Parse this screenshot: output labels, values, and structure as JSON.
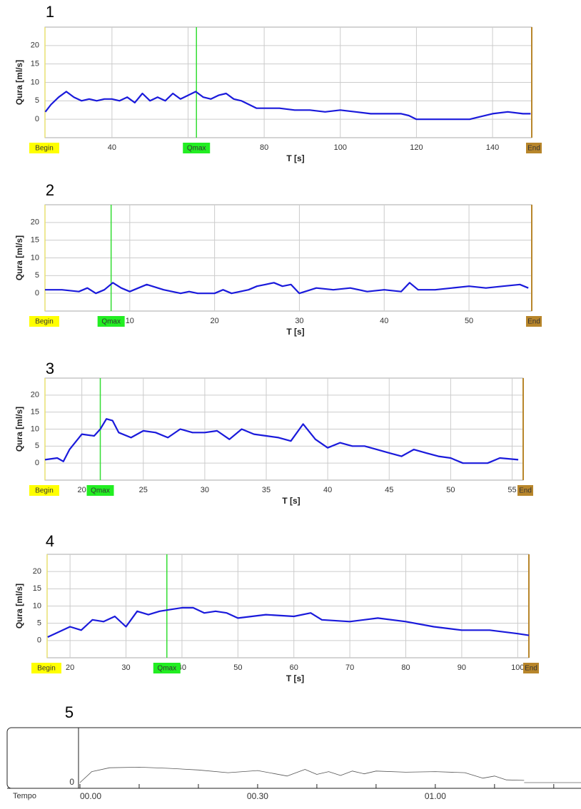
{
  "chart_data": [
    {
      "type": "line",
      "label": "1",
      "ylabel": "Qura [ml/s]",
      "xlabel": "T [s]",
      "xlim": [
        22.4,
        150.3
      ],
      "ylim": [
        -5,
        25
      ],
      "xticks": [
        40,
        60,
        80,
        100,
        120,
        140
      ],
      "yticks": [
        0,
        5,
        10,
        15,
        20
      ],
      "grid": true,
      "markers": {
        "begin": "Begin",
        "qmax": "Qmax",
        "end": "End"
      },
      "qmax_x": 62.2,
      "series": [
        {
          "color": "#1a1adb",
          "x": [
            22.5,
            24,
            26,
            28,
            30,
            32,
            34,
            36,
            38,
            40,
            42,
            44,
            46,
            48,
            50,
            52,
            54,
            56,
            58,
            60,
            62,
            64,
            66,
            68,
            70,
            72,
            74,
            76,
            78,
            80,
            84,
            88,
            92,
            96,
            100,
            104,
            108,
            112,
            116,
            118,
            120,
            125,
            130,
            134,
            136,
            140,
            144,
            148,
            150
          ],
          "values": [
            2,
            4,
            6,
            7.5,
            6,
            5,
            5.5,
            5,
            5.5,
            5.5,
            5,
            6,
            4.5,
            7,
            5,
            6,
            5,
            7,
            5.5,
            6.5,
            7.5,
            6,
            5.5,
            6.5,
            7,
            5.5,
            5,
            4,
            3,
            3,
            3,
            2.5,
            2.5,
            2,
            2.5,
            2,
            1.5,
            1.5,
            1.5,
            1,
            0,
            0,
            0,
            0,
            0.5,
            1.5,
            2,
            1.5,
            1.5
          ]
        }
      ]
    },
    {
      "type": "line",
      "label": "2",
      "ylabel": "Qura [ml/s]",
      "xlabel": "T [s]",
      "xlim": [
        0,
        57.4
      ],
      "ylim": [
        -5,
        25
      ],
      "xticks": [
        10,
        20,
        30,
        40,
        50
      ],
      "yticks": [
        0,
        5,
        10,
        15,
        20
      ],
      "grid": true,
      "markers": {
        "begin": "Begin",
        "qmax": "Qmax",
        "end": "End"
      },
      "qmax_x": 7.8,
      "series": [
        {
          "color": "#1a1adb",
          "x": [
            0,
            2,
            4,
            5,
            6,
            7,
            8,
            9,
            10,
            12,
            14,
            16,
            17,
            18,
            20,
            21,
            22,
            24,
            25,
            26,
            27,
            28,
            29,
            30,
            32,
            34,
            36,
            38,
            40,
            42,
            43,
            44,
            46,
            48,
            50,
            52,
            54,
            56,
            57
          ],
          "values": [
            1,
            1,
            0.5,
            1.5,
            0,
            1,
            3,
            1.5,
            0.5,
            2.5,
            1,
            0,
            0.5,
            0,
            0,
            1,
            0,
            1,
            2,
            2.5,
            3,
            2,
            2.5,
            0,
            1.5,
            1,
            1.5,
            0.5,
            1,
            0.5,
            3,
            1,
            1,
            1.5,
            2,
            1.5,
            2,
            2.5,
            1.5
          ]
        }
      ]
    },
    {
      "type": "line",
      "label": "3",
      "ylabel": "Qura [ml/s]",
      "xlabel": "T [s]",
      "xlim": [
        17,
        55.9
      ],
      "ylim": [
        -5,
        25
      ],
      "xticks": [
        20,
        25,
        30,
        35,
        40,
        45,
        50,
        55
      ],
      "yticks": [
        0,
        5,
        10,
        15,
        20
      ],
      "grid": true,
      "markers": {
        "begin": "Begin",
        "qmax": "Qmax",
        "end": "End"
      },
      "qmax_x": 21.5,
      "series": [
        {
          "color": "#1a1adb",
          "x": [
            17,
            18,
            18.5,
            19,
            20,
            21,
            21.5,
            22,
            22.5,
            23,
            24,
            25,
            26,
            27,
            28,
            29,
            30,
            31,
            32,
            33,
            34,
            35,
            36,
            37,
            38,
            39,
            40,
            41,
            42,
            43,
            44,
            45,
            46,
            47,
            48,
            49,
            50,
            51,
            52,
            53,
            54,
            55.5
          ],
          "values": [
            1,
            1.5,
            0.5,
            4,
            8.5,
            8,
            10,
            13,
            12.5,
            9,
            7.5,
            9.5,
            9,
            7.5,
            10,
            9,
            9,
            9.5,
            7,
            10,
            8.5,
            8,
            7.5,
            6.5,
            11.5,
            7,
            4.5,
            6,
            5,
            5,
            4,
            3,
            2,
            4,
            3,
            2,
            1.5,
            0,
            0,
            0,
            1.5,
            1
          ]
        }
      ]
    },
    {
      "type": "line",
      "label": "4",
      "ylabel": "Qura [ml/s]",
      "xlabel": "T [s]",
      "xlim": [
        15.9,
        102
      ],
      "ylim": [
        -5,
        25
      ],
      "xticks": [
        20,
        30,
        40,
        50,
        60,
        70,
        80,
        90,
        100
      ],
      "yticks": [
        0,
        5,
        10,
        15,
        20
      ],
      "grid": true,
      "markers": {
        "begin": "Begin",
        "qmax": "Qmax",
        "end": "End"
      },
      "qmax_x": 37.3,
      "series": [
        {
          "color": "#1a1adb",
          "x": [
            16,
            18,
            20,
            22,
            24,
            26,
            28,
            30,
            32,
            34,
            36,
            38,
            40,
            42,
            44,
            46,
            48,
            50,
            55,
            60,
            63,
            65,
            70,
            75,
            80,
            85,
            90,
            95,
            100,
            102
          ],
          "values": [
            1,
            2.5,
            4,
            3,
            6,
            5.5,
            7,
            4,
            8.5,
            7.5,
            8.5,
            9,
            9.5,
            9.5,
            8,
            8.5,
            8,
            6.5,
            7.5,
            7,
            8,
            6,
            5.5,
            6.5,
            5.5,
            4,
            3,
            3,
            2,
            1.5
          ]
        }
      ]
    },
    {
      "type": "trace",
      "label": "5",
      "xlabel": "Tempo",
      "xlim": [
        0,
        84.6
      ],
      "ylim": [
        0,
        10
      ],
      "xticks": [
        {
          "value": 0,
          "label": "00.00"
        },
        {
          "value": 30,
          "label": "00.30"
        },
        {
          "value": 60,
          "label": "01.00"
        }
      ],
      "minor_xticks": [
        10,
        20,
        40,
        50,
        70,
        80
      ],
      "yticks": [
        0
      ],
      "grid": false,
      "series": [
        {
          "color": "#555555",
          "x": [
            0,
            2,
            5,
            10,
            15,
            20,
            25,
            30,
            35,
            38,
            40,
            42,
            44,
            46,
            48,
            50,
            55,
            60,
            65,
            68,
            70,
            72,
            75
          ],
          "values": [
            0,
            2,
            2.7,
            2.8,
            2.6,
            2.3,
            1.8,
            2.2,
            1.2,
            2.4,
            1.5,
            2.0,
            1.3,
            2.1,
            1.6,
            2.1,
            1.9,
            2.0,
            1.8,
            0.8,
            1.2,
            0.5,
            0.4
          ]
        }
      ]
    }
  ]
}
